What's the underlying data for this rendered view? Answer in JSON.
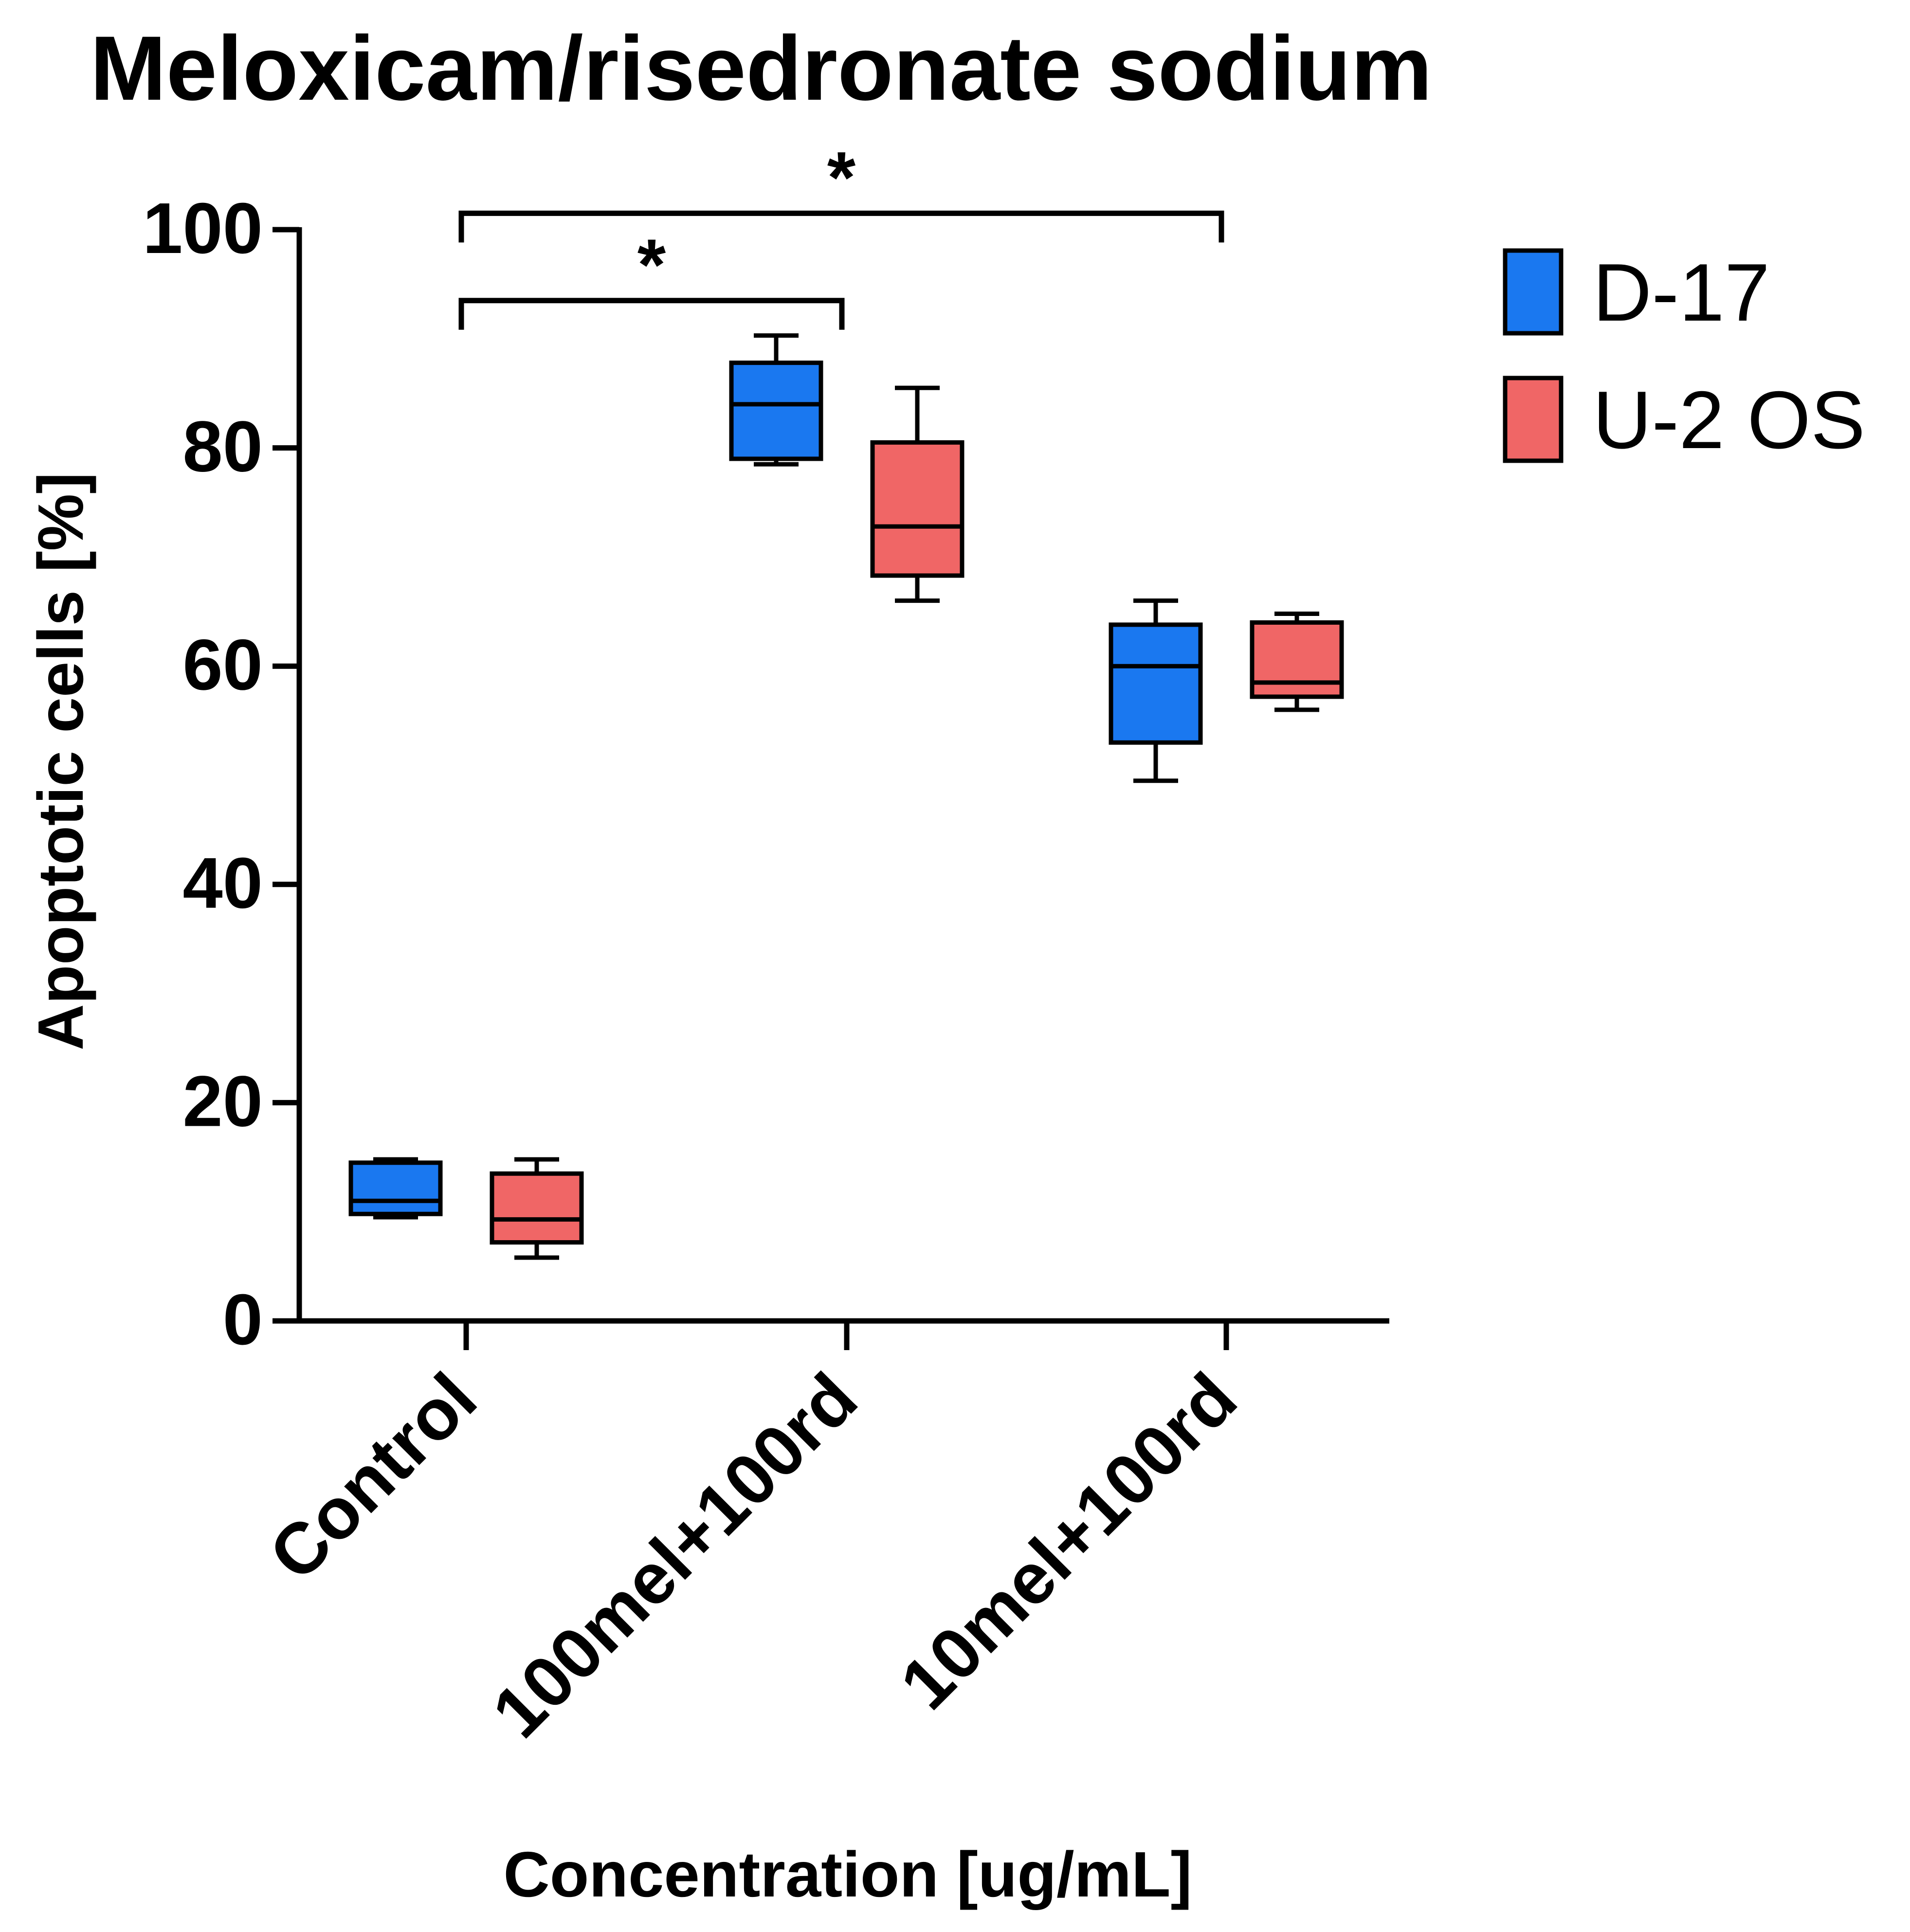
{
  "chart_data": {
    "type": "box",
    "title": "Meloxicam/risedronate sodium",
    "xlabel": "Concentration [ug/mL]",
    "ylabel": "Apoptotic cells [%]",
    "ylim": [
      0,
      100
    ],
    "yticks": [
      0,
      20,
      40,
      60,
      80,
      100
    ],
    "categories": [
      "Control",
      "100mel+100rd",
      "10mel+100rd"
    ],
    "legend_position": "top-right",
    "series": [
      {
        "name": "D-17",
        "color": "#1a78f0",
        "boxes": [
          {
            "min": 9.5,
            "q1": 9.8,
            "median": 11.0,
            "q3": 14.5,
            "max": 14.8
          },
          {
            "min": 78.5,
            "q1": 79.0,
            "median": 84.0,
            "q3": 87.8,
            "max": 90.3
          },
          {
            "min": 49.5,
            "q1": 53.0,
            "median": 60.0,
            "q3": 63.8,
            "max": 66.0
          }
        ]
      },
      {
        "name": "U-2 OS",
        "color": "#f06666",
        "boxes": [
          {
            "min": 5.8,
            "q1": 7.2,
            "median": 9.3,
            "q3": 13.5,
            "max": 14.8
          },
          {
            "min": 66.0,
            "q1": 68.3,
            "median": 72.8,
            "q3": 80.5,
            "max": 85.5
          },
          {
            "min": 56.0,
            "q1": 57.2,
            "median": 58.5,
            "q3": 64.0,
            "max": 64.8
          }
        ]
      }
    ],
    "annotations": [
      {
        "label": "*",
        "from": "Control",
        "to": "100mel+100rd",
        "y": 93.5
      },
      {
        "label": "*",
        "from": "Control",
        "to": "10mel+100rd",
        "y": 101.5
      }
    ]
  }
}
